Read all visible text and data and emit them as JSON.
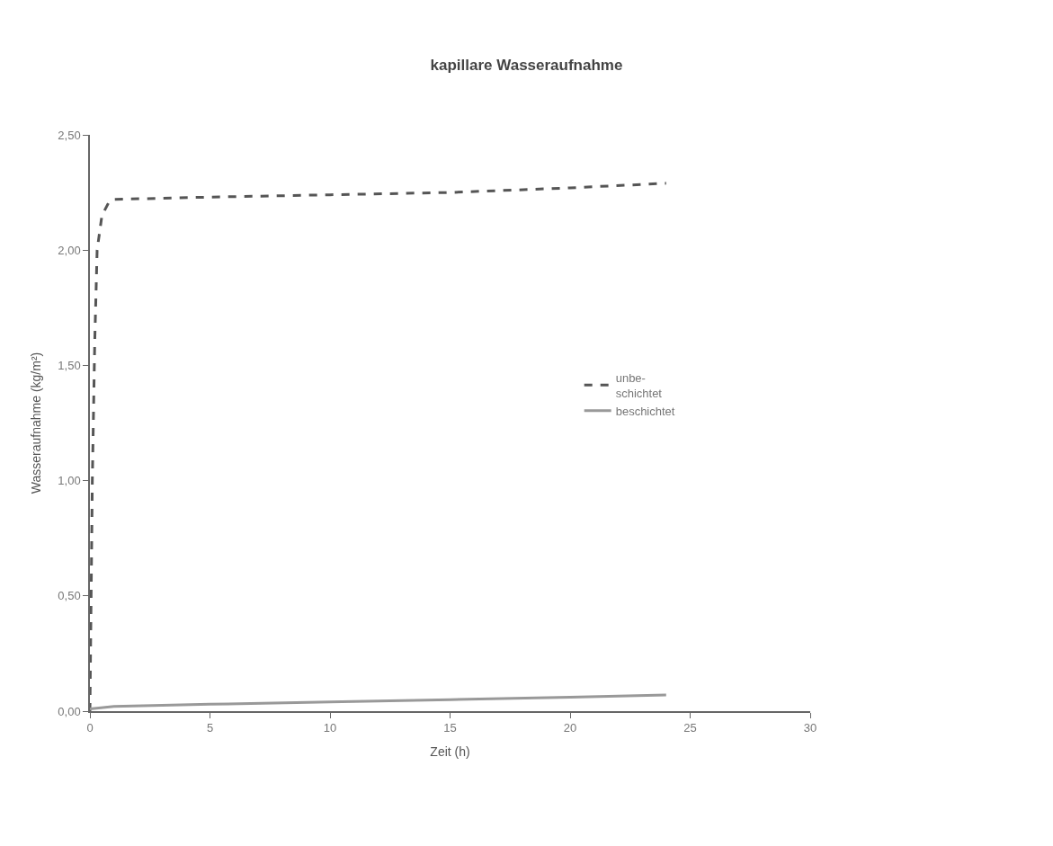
{
  "chart_data": {
    "type": "line",
    "title": "kapillare Wasseraufnahme",
    "xlabel": "Zeit (h)",
    "ylabel": "Wasseraufnahme (kg/m²)",
    "xlim": [
      0,
      30
    ],
    "xticks": [
      0,
      5,
      10,
      15,
      20,
      25,
      30
    ],
    "ylim": [
      0,
      2.5
    ],
    "yticks": [
      {
        "value": 0,
        "label": "0,00"
      },
      {
        "value": 0.5,
        "label": "0,50"
      },
      {
        "value": 1.0,
        "label": "1,00"
      },
      {
        "value": 1.5,
        "label": "1,50"
      },
      {
        "value": 2.0,
        "label": "2,00"
      },
      {
        "value": 2.5,
        "label": "2,50"
      }
    ],
    "legend": "right",
    "series": [
      {
        "name": "unbe-\nschichtet",
        "color": "#555555",
        "line_style": "dashed",
        "x": [
          0,
          0.05,
          0.1,
          0.2,
          0.3,
          0.5,
          0.8,
          1,
          5,
          10,
          15,
          20,
          24
        ],
        "values": [
          0,
          0.5,
          1.0,
          1.6,
          2.0,
          2.15,
          2.21,
          2.22,
          2.23,
          2.24,
          2.25,
          2.27,
          2.29
        ]
      },
      {
        "name": "beschichtet",
        "color": "#999999",
        "line_style": "solid",
        "x": [
          0,
          1,
          5,
          10,
          15,
          20,
          24
        ],
        "values": [
          0.01,
          0.02,
          0.03,
          0.04,
          0.05,
          0.06,
          0.07
        ]
      }
    ]
  }
}
